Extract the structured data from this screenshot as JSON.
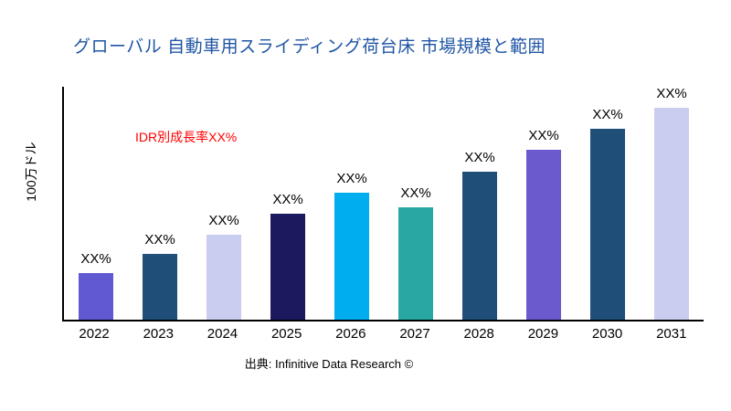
{
  "chart_data": {
    "type": "bar",
    "title": "グローバル 自動車用スライディング荷台床 市場規模と範囲",
    "annotation": "IDR別成長率XX%",
    "ylabel": "100万ドル",
    "xlabel": "",
    "source": "出典: Infinitive Data Research ©",
    "categories": [
      "2022",
      "2023",
      "2024",
      "2025",
      "2026",
      "2027",
      "2028",
      "2029",
      "2030",
      "2031"
    ],
    "values": [
      22,
      31,
      40,
      50,
      60,
      53,
      70,
      80,
      90,
      100
    ],
    "value_labels": [
      "XX%",
      "XX%",
      "XX%",
      "XX%",
      "XX%",
      "XX%",
      "XX%",
      "XX%",
      "XX%",
      "XX%"
    ],
    "colors": [
      "#6159D1",
      "#1F4E79",
      "#C9CDEF",
      "#1C1A5E",
      "#00AEEF",
      "#28A7A3",
      "#1F4E79",
      "#6A5ACD",
      "#1F4E79",
      "#C9CDEF"
    ],
    "ylim": [
      0,
      110
    ],
    "grid": false,
    "legend": "none",
    "title_color": "#1F55A4",
    "annotation_color": "#FF0000",
    "axis_color": "#000000"
  }
}
